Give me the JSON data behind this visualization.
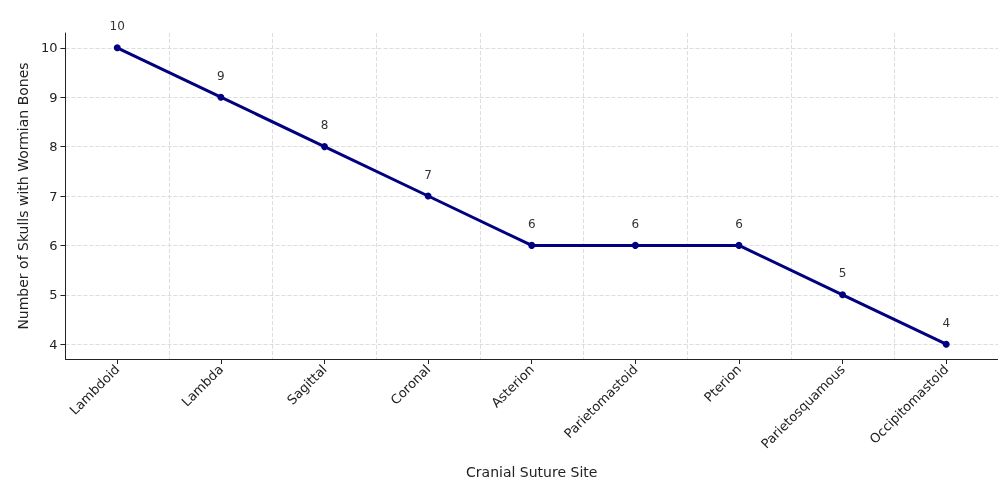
{
  "chart_data": {
    "type": "line",
    "xlabel": "Cranial Suture Site",
    "ylabel": "Number of Skulls with Wormian Bones",
    "categories": [
      "Lambdoid",
      "Lambda",
      "Sagittal",
      "Coronal",
      "Asterion",
      "Parietomastoid",
      "Pterion",
      "Parietosquamous",
      "Occipitomastoid"
    ],
    "series": [
      {
        "color": "#000080",
        "values": [
          10,
          9,
          8,
          7,
          6,
          6,
          6,
          5,
          4
        ]
      }
    ],
    "ylim": [
      3.7,
      10.3
    ],
    "yticks": [
      4,
      5,
      6,
      7,
      8,
      9,
      10
    ],
    "grid": true,
    "marker": "circle",
    "line_style": "solid",
    "data_labels": true
  }
}
